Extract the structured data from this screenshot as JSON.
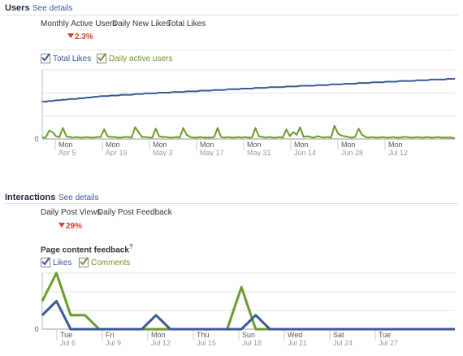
{
  "users": {
    "title": "Users",
    "see_details": "See details",
    "tabs": [
      "Monthly Active Users",
      "Daily New Likes",
      "Total Likes"
    ],
    "change": "2.3%",
    "legend": [
      {
        "label": "Total Likes",
        "color": "#3b5998",
        "checked": true
      },
      {
        "label": "Daily active users",
        "color": "#6d9a2c",
        "checked": true
      }
    ]
  },
  "interactions": {
    "title": "Interactions",
    "see_details": "See details",
    "tabs": [
      "Daily Post Views",
      "Daily Post Feedback"
    ],
    "change": "29%",
    "subheading": "Page content feedback",
    "help": "?",
    "legend": [
      {
        "label": "Likes",
        "color": "#3b5998",
        "checked": true
      },
      {
        "label": "Comments",
        "color": "#6d9a2c",
        "checked": true
      }
    ]
  },
  "chart_data": [
    {
      "type": "line",
      "y_axis_label": "0",
      "ticks": [
        {
          "day": "Mon",
          "date": "Apr 5"
        },
        {
          "day": "Mon",
          "date": "Apr 19"
        },
        {
          "day": "Mon",
          "date": "May 3"
        },
        {
          "day": "Mon",
          "date": "May 17"
        },
        {
          "day": "Mon",
          "date": "May 31"
        },
        {
          "day": "Mon",
          "date": "Jun 14"
        },
        {
          "day": "Mon",
          "date": "Jun 28"
        },
        {
          "day": "Mon",
          "date": "Jul 12"
        }
      ],
      "ylim": [
        0,
        100
      ],
      "series": [
        {
          "name": "Total Likes",
          "color": "#3b5998",
          "values": [
            54,
            54,
            55,
            55,
            56,
            56,
            57,
            57,
            58,
            58,
            58,
            59,
            59,
            60,
            60,
            61,
            61,
            62,
            62,
            62,
            63,
            63,
            63,
            64,
            64,
            64,
            64,
            65,
            65,
            65,
            66,
            66,
            66,
            66,
            67,
            67,
            67,
            67,
            68,
            68,
            68,
            68,
            69,
            69,
            69,
            69,
            70,
            70,
            70,
            70,
            71,
            71,
            71,
            71,
            72,
            72,
            72,
            72,
            73,
            73,
            73,
            73,
            74,
            74,
            74,
            74,
            75,
            75,
            75,
            75,
            75,
            76,
            76,
            76,
            76,
            77,
            77,
            77,
            77,
            77,
            78,
            78,
            78,
            78,
            79,
            79,
            79,
            79,
            80,
            80,
            80,
            80,
            81,
            81,
            81,
            81,
            82,
            82,
            82,
            82,
            83,
            83,
            83,
            83,
            84,
            84,
            84,
            84,
            84,
            85,
            85,
            85,
            85,
            86,
            86,
            86,
            86,
            86,
            87,
            87,
            87
          ]
        },
        {
          "name": "Daily active users",
          "color": "#6d9a2c",
          "values": [
            2,
            2,
            12,
            10,
            4,
            3,
            16,
            4,
            3,
            2,
            3,
            2,
            2,
            3,
            2,
            2,
            3,
            3,
            14,
            4,
            3,
            3,
            2,
            2,
            3,
            3,
            2,
            17,
            10,
            3,
            3,
            2,
            2,
            15,
            4,
            3,
            3,
            2,
            2,
            3,
            2,
            16,
            6,
            3,
            2,
            2,
            3,
            2,
            2,
            2,
            3,
            16,
            3,
            2,
            3,
            2,
            2,
            3,
            2,
            3,
            2,
            2,
            16,
            4,
            3,
            2,
            3,
            2,
            2,
            3,
            2,
            14,
            4,
            10,
            6,
            17,
            3,
            4,
            3,
            2,
            4,
            3,
            2,
            3,
            2,
            19,
            8,
            5,
            4,
            3,
            2,
            3,
            15,
            6,
            3,
            2,
            3,
            2,
            2,
            3,
            2,
            2,
            3,
            2,
            2,
            3,
            3,
            2,
            2,
            3,
            2,
            2,
            3,
            2,
            2,
            3,
            2,
            2,
            2,
            2,
            1
          ]
        }
      ]
    },
    {
      "type": "line",
      "y_axis_label": "0",
      "ticks": [
        {
          "day": "Tue",
          "date": "Jul 6"
        },
        {
          "day": "Fri",
          "date": "Jul 9"
        },
        {
          "day": "Mon",
          "date": "Jul 12"
        },
        {
          "day": "Thu",
          "date": "Jul 15"
        },
        {
          "day": "Sun",
          "date": "Jul 18"
        },
        {
          "day": "Wed",
          "date": "Jul 21"
        },
        {
          "day": "Sat",
          "date": "Jul 24"
        },
        {
          "day": "Tue",
          "date": "Jul 27"
        }
      ],
      "ylim": [
        0,
        4
      ],
      "series": [
        {
          "name": "Likes",
          "color": "#3b5998",
          "values": [
            1,
            2,
            0,
            0,
            0,
            0,
            0,
            0,
            1,
            0,
            0,
            0,
            0,
            0,
            0,
            1,
            0,
            0,
            0,
            0,
            0,
            0,
            0,
            0,
            0,
            0,
            0,
            0,
            0,
            0
          ]
        },
        {
          "name": "Comments",
          "color": "#6d9a2c",
          "values": [
            2,
            4,
            1,
            1,
            0,
            0,
            0,
            0,
            0,
            0,
            0,
            0,
            0,
            0,
            3,
            0,
            0,
            0,
            0,
            0,
            0,
            0,
            0,
            0,
            0,
            0,
            0,
            0,
            0,
            0
          ]
        }
      ]
    }
  ]
}
